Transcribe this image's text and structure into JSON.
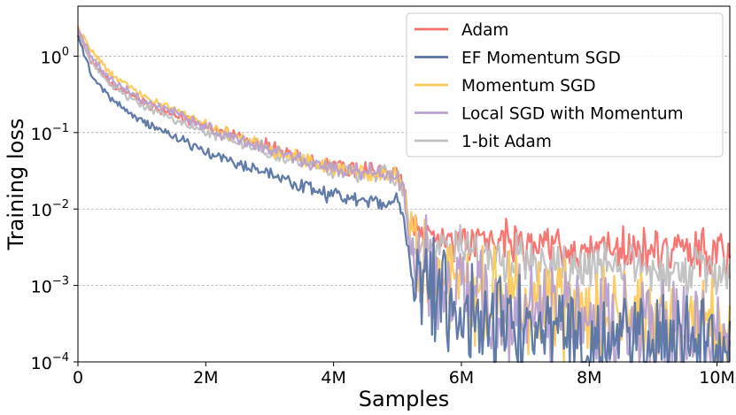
{
  "chart_data": {
    "type": "line",
    "xlabel": "Samples",
    "ylabel": "Training loss",
    "xlim": [
      0,
      10.2
    ],
    "ylim": [
      0.0001,
      4.5
    ],
    "yscale": "log",
    "grid": "horizontal dashed at major y ticks",
    "legend_position": "top-right",
    "x_ticks": [
      {
        "value": 0,
        "label": "0"
      },
      {
        "value": 2,
        "label": "2M"
      },
      {
        "value": 4,
        "label": "4M"
      },
      {
        "value": 6,
        "label": "6M"
      },
      {
        "value": 8,
        "label": "8M"
      },
      {
        "value": 10,
        "label": "10M"
      }
    ],
    "y_ticks": [
      {
        "value": 1,
        "base": "10",
        "exp": "0"
      },
      {
        "value": 0.1,
        "base": "10",
        "exp": "−1"
      },
      {
        "value": 0.01,
        "base": "10",
        "exp": "−2"
      },
      {
        "value": 0.001,
        "base": "10",
        "exp": "−3"
      },
      {
        "value": 0.0001,
        "base": "10",
        "exp": "−4"
      }
    ],
    "series": [
      {
        "name": "Adam",
        "color": "#f96f6a",
        "x": [
          0,
          0.2,
          0.5,
          1,
          1.5,
          2,
          2.5,
          3,
          3.5,
          4,
          4.5,
          5,
          5.1,
          5.2,
          5.5,
          6,
          6.5,
          7,
          7.5,
          8,
          8.5,
          9,
          9.5,
          10,
          10.2
        ],
        "y": [
          2.0,
          0.9,
          0.45,
          0.25,
          0.17,
          0.12,
          0.09,
          0.065,
          0.045,
          0.035,
          0.032,
          0.03,
          0.02,
          0.005,
          0.0045,
          0.004,
          0.0036,
          0.0033,
          0.003,
          0.0029,
          0.0028,
          0.0028,
          0.0027,
          0.0027,
          0.0027
        ]
      },
      {
        "name": "EF Momentum SGD",
        "color": "#5975a4",
        "x": [
          0,
          0.2,
          0.5,
          1,
          1.5,
          2,
          2.5,
          3,
          3.5,
          4,
          4.5,
          5,
          5.1,
          5.2,
          5.5,
          6,
          6.5,
          7,
          7.5,
          8,
          8.5,
          9,
          9.5,
          10,
          10.2
        ],
        "y": [
          1.8,
          0.6,
          0.28,
          0.14,
          0.09,
          0.055,
          0.04,
          0.028,
          0.02,
          0.015,
          0.013,
          0.012,
          0.008,
          0.002,
          0.0008,
          0.0004,
          0.0003,
          0.00025,
          0.0002,
          0.00018,
          0.00017,
          0.00016,
          0.00015,
          0.00014,
          0.00014
        ]
      },
      {
        "name": "Momentum SGD",
        "color": "#fdca58",
        "x": [
          0,
          0.2,
          0.5,
          1,
          1.5,
          2,
          2.5,
          3,
          3.5,
          4,
          4.5,
          5,
          5.1,
          5.2,
          5.5,
          6,
          6.5,
          7,
          7.5,
          8,
          8.5,
          9,
          9.5,
          10,
          10.2
        ],
        "y": [
          2.4,
          1.2,
          0.6,
          0.3,
          0.2,
          0.13,
          0.085,
          0.06,
          0.045,
          0.035,
          0.03,
          0.028,
          0.018,
          0.004,
          0.002,
          0.0012,
          0.0008,
          0.0006,
          0.0005,
          0.0004,
          0.00035,
          0.0003,
          0.0003,
          0.00028,
          0.00028
        ]
      },
      {
        "name": "Local SGD with Momentum",
        "color": "#b8a1cf",
        "x": [
          0,
          0.2,
          0.5,
          1,
          1.5,
          2,
          2.5,
          3,
          3.5,
          4,
          4.5,
          5,
          5.1,
          5.2,
          5.5,
          6,
          6.5,
          7,
          7.5,
          8,
          8.5,
          9,
          9.5,
          10,
          10.2
        ],
        "y": [
          2.2,
          1.0,
          0.5,
          0.27,
          0.18,
          0.12,
          0.08,
          0.06,
          0.042,
          0.033,
          0.03,
          0.027,
          0.017,
          0.003,
          0.0015,
          0.0008,
          0.0005,
          0.0004,
          0.00035,
          0.0003,
          0.00028,
          0.00026,
          0.00025,
          0.00024,
          0.00024
        ]
      },
      {
        "name": "1-bit Adam",
        "color": "#c0c0c0",
        "x": [
          0,
          0.2,
          0.5,
          1,
          1.5,
          2,
          2.5,
          3,
          3.5,
          4,
          4.5,
          5,
          5.1,
          5.2,
          5.5,
          6,
          6.5,
          7,
          7.5,
          8,
          8.5,
          9,
          9.5,
          10,
          10.2
        ],
        "y": [
          1.9,
          0.85,
          0.42,
          0.23,
          0.15,
          0.1,
          0.075,
          0.055,
          0.04,
          0.032,
          0.029,
          0.027,
          0.018,
          0.004,
          0.0033,
          0.003,
          0.0025,
          0.0022,
          0.002,
          0.0018,
          0.0017,
          0.0016,
          0.0015,
          0.0015,
          0.0015
        ]
      }
    ]
  }
}
